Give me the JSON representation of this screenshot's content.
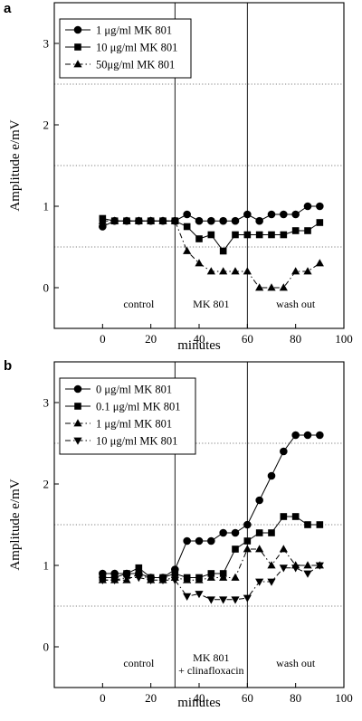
{
  "charts": [
    {
      "panel_label": "a",
      "chart_data": {
        "type": "line",
        "xlabel": "minutes",
        "ylabel": "Amplitude e/mV",
        "xlim": [
          -20,
          100
        ],
        "ylim": [
          -0.5,
          3.5
        ],
        "x_ticks": [
          0,
          20,
          40,
          60,
          80,
          100
        ],
        "y_ticks": [
          0,
          1,
          2,
          3
        ],
        "dotted_gridlines_y": [
          0.5,
          1.5,
          2.5
        ],
        "phase_boundaries_x": [
          30,
          60
        ],
        "phases": [
          {
            "label": "control",
            "x": 15
          },
          {
            "label": "MK 801",
            "x": 45
          },
          {
            "label": "wash out",
            "x": 80
          }
        ],
        "legend_position": "top-left",
        "series": [
          {
            "name": "1 μg/ml MK 801",
            "marker": "circle",
            "line": "solid",
            "x": [
              0,
              5,
              10,
              15,
              20,
              25,
              30,
              35,
              40,
              45,
              50,
              55,
              60,
              65,
              70,
              75,
              80,
              85,
              90
            ],
            "y": [
              0.75,
              0.82,
              0.82,
              0.82,
              0.82,
              0.82,
              0.82,
              0.9,
              0.82,
              0.82,
              0.82,
              0.82,
              0.9,
              0.82,
              0.9,
              0.9,
              0.9,
              1.0,
              1.0
            ]
          },
          {
            "name": "10 μg/ml MK 801",
            "marker": "square",
            "line": "solid",
            "x": [
              0,
              5,
              10,
              15,
              20,
              25,
              30,
              35,
              40,
              45,
              50,
              55,
              60,
              65,
              70,
              75,
              80,
              85,
              90
            ],
            "y": [
              0.85,
              0.82,
              0.82,
              0.82,
              0.82,
              0.82,
              0.82,
              0.75,
              0.6,
              0.65,
              0.45,
              0.65,
              0.65,
              0.65,
              0.65,
              0.65,
              0.7,
              0.7,
              0.8
            ]
          },
          {
            "name": "50μg/ml MK 801",
            "marker": "triangle-up",
            "line": "dash-dot",
            "x": [
              0,
              5,
              10,
              15,
              20,
              25,
              30,
              35,
              40,
              45,
              50,
              55,
              60,
              65,
              70,
              75,
              80,
              85,
              90
            ],
            "y": [
              0.82,
              0.82,
              0.82,
              0.82,
              0.82,
              0.82,
              0.82,
              0.45,
              0.3,
              0.2,
              0.2,
              0.2,
              0.2,
              0.0,
              0.0,
              0.0,
              0.2,
              0.2,
              0.3
            ]
          }
        ]
      }
    },
    {
      "panel_label": "b",
      "chart_data": {
        "type": "line",
        "xlabel": "minutes",
        "ylabel": "Amplitude e/mV",
        "xlim": [
          -20,
          100
        ],
        "ylim": [
          -0.5,
          3.5
        ],
        "x_ticks": [
          0,
          20,
          40,
          60,
          80,
          100
        ],
        "y_ticks": [
          0,
          1,
          2,
          3
        ],
        "dotted_gridlines_y": [
          0.5,
          1.5,
          2.5
        ],
        "phase_boundaries_x": [
          30,
          60
        ],
        "phases": [
          {
            "label": "control",
            "x": 15
          },
          {
            "label": "MK 801",
            "label2": "+ clinafloxacin",
            "x": 45
          },
          {
            "label": "wash out",
            "x": 80
          }
        ],
        "legend_position": "top-left",
        "series": [
          {
            "name": "0 μg/ml MK 801",
            "marker": "circle",
            "line": "solid",
            "x": [
              0,
              5,
              10,
              15,
              20,
              25,
              30,
              35,
              40,
              45,
              50,
              55,
              60,
              65,
              70,
              75,
              80,
              85,
              90
            ],
            "y": [
              0.9,
              0.9,
              0.9,
              0.9,
              0.85,
              0.85,
              0.95,
              1.3,
              1.3,
              1.3,
              1.4,
              1.4,
              1.5,
              1.8,
              2.1,
              2.4,
              2.6,
              2.6,
              2.6
            ]
          },
          {
            "name": "0.1 μg/ml MK 801",
            "marker": "square",
            "line": "solid",
            "x": [
              0,
              5,
              10,
              15,
              20,
              25,
              30,
              35,
              40,
              45,
              50,
              55,
              60,
              65,
              70,
              75,
              80,
              85,
              90
            ],
            "y": [
              0.85,
              0.85,
              0.9,
              0.97,
              0.85,
              0.85,
              0.9,
              0.85,
              0.85,
              0.9,
              0.9,
              1.2,
              1.3,
              1.4,
              1.4,
              1.6,
              1.6,
              1.5,
              1.5
            ]
          },
          {
            "name": "1 μg/ml MK 801",
            "marker": "triangle-up",
            "line": "dash-dot",
            "x": [
              0,
              5,
              10,
              15,
              20,
              25,
              30,
              35,
              40,
              45,
              50,
              55,
              60,
              65,
              70,
              75,
              80,
              85,
              90
            ],
            "y": [
              0.82,
              0.82,
              0.82,
              0.9,
              0.82,
              0.82,
              0.85,
              0.82,
              0.82,
              0.85,
              0.85,
              0.85,
              1.2,
              1.2,
              1.0,
              1.2,
              1.0,
              1.0,
              1.0
            ]
          },
          {
            "name": "10 μg/ml MK 801",
            "marker": "triangle-down",
            "line": "dash-dot",
            "x": [
              0,
              5,
              10,
              15,
              20,
              25,
              30,
              35,
              40,
              45,
              50,
              55,
              60,
              65,
              70,
              75,
              80,
              85,
              90
            ],
            "y": [
              0.82,
              0.82,
              0.85,
              0.85,
              0.82,
              0.82,
              0.82,
              0.62,
              0.65,
              0.58,
              0.58,
              0.58,
              0.6,
              0.8,
              0.8,
              0.97,
              0.97,
              0.9,
              1.0
            ]
          }
        ]
      }
    }
  ]
}
